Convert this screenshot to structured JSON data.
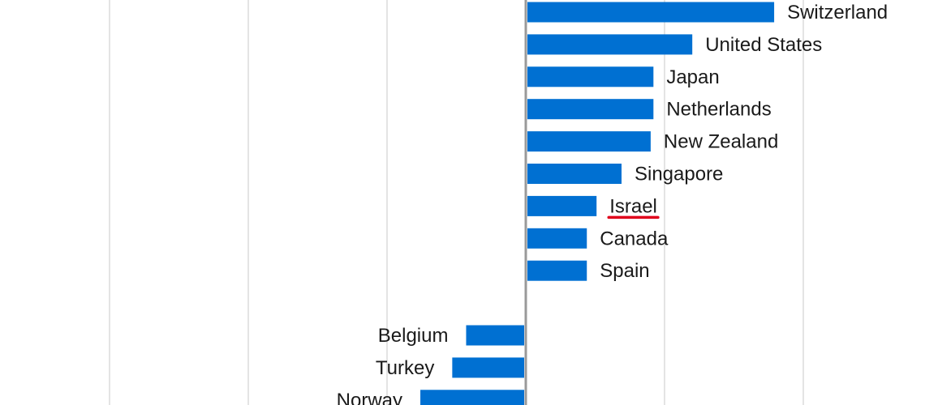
{
  "chart_data": {
    "type": "bar",
    "orientation": "horizontal",
    "title": "",
    "xlabel": "",
    "ylabel": "",
    "grid": true,
    "xlim": [
      -30,
      20
    ],
    "gridlines": [
      -30,
      -20,
      -10,
      0,
      10,
      20
    ],
    "bar_color": "#0070d2",
    "highlight_color": "#e0001b",
    "highlight_category": "Israel",
    "categories": [
      "Switzerland",
      "United States",
      "Japan",
      "Netherlands",
      "New Zealand",
      "Singapore",
      "Israel",
      "Canada",
      "Spain",
      "",
      "Belgium",
      "Turkey",
      "Norway"
    ],
    "values": [
      17.9,
      12.0,
      9.2,
      9.2,
      9.0,
      6.9,
      5.1,
      4.4,
      4.4,
      null,
      -4.3,
      -5.3,
      -7.6
    ]
  }
}
